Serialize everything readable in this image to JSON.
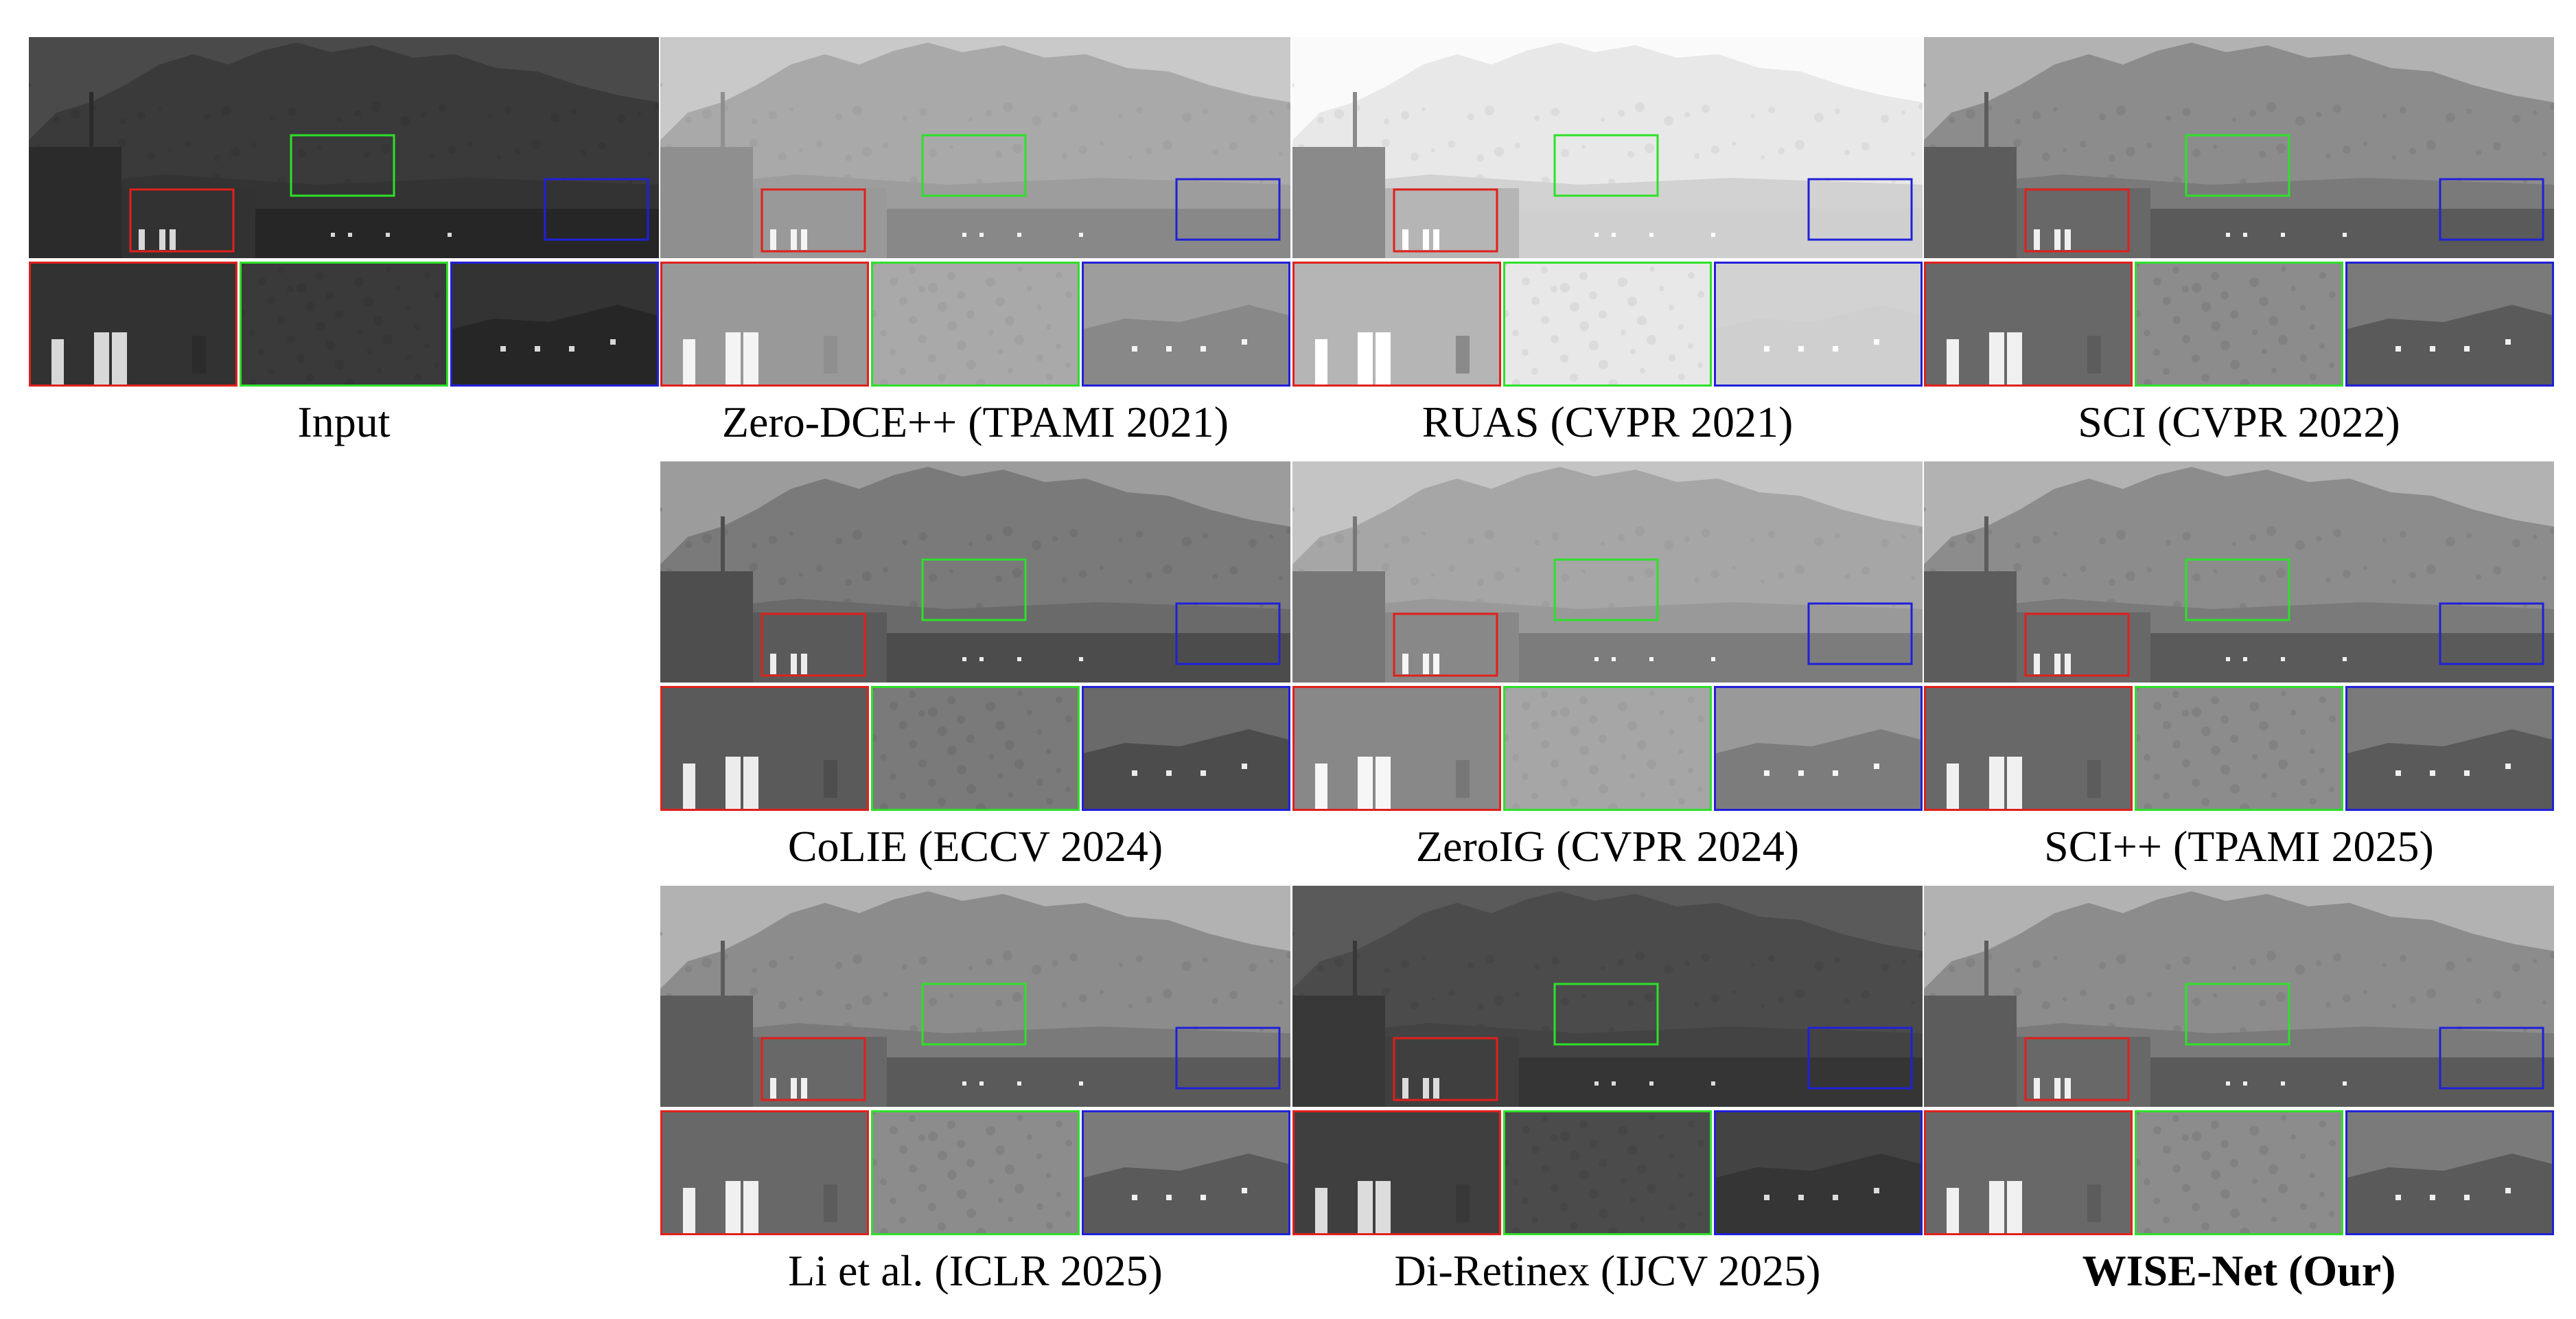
{
  "figure": {
    "panels": [
      {
        "caption": "Input",
        "tone": "dark",
        "bold": false
      },
      {
        "caption": "Zero-DCE++ (TPAMI 2021)",
        "tone": "faded",
        "bold": false
      },
      {
        "caption": "RUAS (CVPR 2021)",
        "tone": "over",
        "bold": false
      },
      {
        "caption": "SCI (CVPR 2022)",
        "tone": "bright",
        "bold": false
      },
      {
        "caption": "CoLIE (ECCV 2024)",
        "tone": "mid",
        "bold": false
      },
      {
        "caption": "ZeroIG (CVPR 2024)",
        "tone": "light",
        "bold": false
      },
      {
        "caption": "SCI++ (TPAMI 2025)",
        "tone": "bright",
        "bold": false
      },
      {
        "caption": "Li et al. (ICLR 2025)",
        "tone": "bright",
        "bold": false
      },
      {
        "caption": "Di-Retinex (IJCV 2025)",
        "tone": "darkish",
        "bold": false
      },
      {
        "caption": "WISE-Net (Our)",
        "tone": "bright",
        "bold": true
      }
    ],
    "box_colors": {
      "red": "#e0201c",
      "green": "#2ee02a",
      "blue": "#2020d8"
    }
  }
}
